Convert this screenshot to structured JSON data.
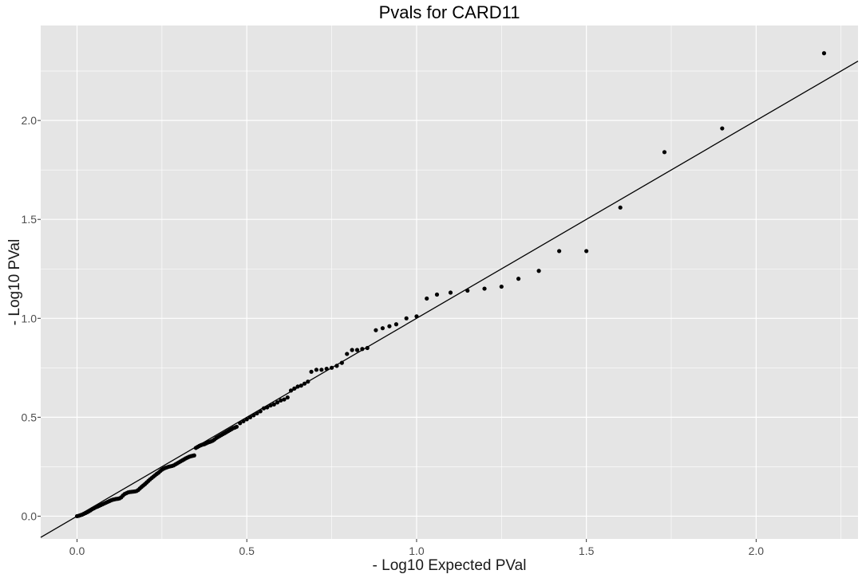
{
  "chart_data": {
    "type": "scatter",
    "title": "Pvals for CARD11",
    "xlabel": "- Log10 Expected PVal",
    "ylabel": "- Log10 PVal",
    "xlim": [
      -0.107,
      2.3
    ],
    "ylim": [
      -0.115,
      2.48
    ],
    "x_ticks": [
      0.0,
      0.5,
      1.0,
      1.5,
      2.0
    ],
    "x_tick_labels": [
      "0.0",
      "0.5",
      "1.0",
      "1.5",
      "2.0"
    ],
    "y_ticks": [
      0.0,
      0.5,
      1.0,
      1.5,
      2.0
    ],
    "y_tick_labels": [
      "0.0",
      "0.5",
      "1.0",
      "1.5",
      "2.0"
    ],
    "grid": true,
    "reference_line": {
      "type": "identity",
      "slope": 1,
      "intercept": 0
    },
    "colors": {
      "panel": "#e5e5e5",
      "grid": "#ffffff",
      "points": "#000000",
      "line": "#000000"
    },
    "points": [
      [
        0.0,
        0.0
      ],
      [
        0.005,
        0.002
      ],
      [
        0.01,
        0.005
      ],
      [
        0.015,
        0.008
      ],
      [
        0.02,
        0.012
      ],
      [
        0.025,
        0.016
      ],
      [
        0.03,
        0.02
      ],
      [
        0.035,
        0.025
      ],
      [
        0.04,
        0.03
      ],
      [
        0.045,
        0.036
      ],
      [
        0.05,
        0.04
      ],
      [
        0.055,
        0.045
      ],
      [
        0.06,
        0.048
      ],
      [
        0.065,
        0.052
      ],
      [
        0.07,
        0.056
      ],
      [
        0.075,
        0.06
      ],
      [
        0.08,
        0.064
      ],
      [
        0.085,
        0.068
      ],
      [
        0.09,
        0.072
      ],
      [
        0.095,
        0.076
      ],
      [
        0.1,
        0.08
      ],
      [
        0.105,
        0.083
      ],
      [
        0.11,
        0.085
      ],
      [
        0.115,
        0.087
      ],
      [
        0.12,
        0.088
      ],
      [
        0.125,
        0.09
      ],
      [
        0.13,
        0.095
      ],
      [
        0.135,
        0.104
      ],
      [
        0.14,
        0.112
      ],
      [
        0.145,
        0.116
      ],
      [
        0.15,
        0.12
      ],
      [
        0.155,
        0.122
      ],
      [
        0.16,
        0.123
      ],
      [
        0.165,
        0.124
      ],
      [
        0.17,
        0.125
      ],
      [
        0.175,
        0.127
      ],
      [
        0.18,
        0.132
      ],
      [
        0.185,
        0.14
      ],
      [
        0.19,
        0.148
      ],
      [
        0.195,
        0.155
      ],
      [
        0.2,
        0.162
      ],
      [
        0.205,
        0.17
      ],
      [
        0.21,
        0.178
      ],
      [
        0.215,
        0.186
      ],
      [
        0.22,
        0.193
      ],
      [
        0.225,
        0.2
      ],
      [
        0.23,
        0.207
      ],
      [
        0.235,
        0.214
      ],
      [
        0.24,
        0.22
      ],
      [
        0.245,
        0.228
      ],
      [
        0.25,
        0.235
      ],
      [
        0.255,
        0.24
      ],
      [
        0.26,
        0.244
      ],
      [
        0.265,
        0.247
      ],
      [
        0.27,
        0.25
      ],
      [
        0.275,
        0.252
      ],
      [
        0.28,
        0.254
      ],
      [
        0.285,
        0.257
      ],
      [
        0.29,
        0.262
      ],
      [
        0.295,
        0.267
      ],
      [
        0.3,
        0.272
      ],
      [
        0.305,
        0.277
      ],
      [
        0.31,
        0.282
      ],
      [
        0.315,
        0.287
      ],
      [
        0.32,
        0.292
      ],
      [
        0.325,
        0.296
      ],
      [
        0.33,
        0.3
      ],
      [
        0.335,
        0.303
      ],
      [
        0.34,
        0.305
      ],
      [
        0.345,
        0.307
      ],
      [
        0.35,
        0.345
      ],
      [
        0.355,
        0.35
      ],
      [
        0.36,
        0.355
      ],
      [
        0.365,
        0.359
      ],
      [
        0.37,
        0.362
      ],
      [
        0.375,
        0.364
      ],
      [
        0.38,
        0.368
      ],
      [
        0.385,
        0.372
      ],
      [
        0.39,
        0.375
      ],
      [
        0.395,
        0.378
      ],
      [
        0.4,
        0.382
      ],
      [
        0.405,
        0.388
      ],
      [
        0.41,
        0.395
      ],
      [
        0.415,
        0.4
      ],
      [
        0.42,
        0.405
      ],
      [
        0.425,
        0.41
      ],
      [
        0.43,
        0.415
      ],
      [
        0.435,
        0.42
      ],
      [
        0.44,
        0.425
      ],
      [
        0.445,
        0.43
      ],
      [
        0.45,
        0.435
      ],
      [
        0.455,
        0.44
      ],
      [
        0.46,
        0.445
      ],
      [
        0.465,
        0.448
      ],
      [
        0.47,
        0.452
      ],
      [
        0.48,
        0.47
      ],
      [
        0.49,
        0.48
      ],
      [
        0.5,
        0.49
      ],
      [
        0.51,
        0.5
      ],
      [
        0.52,
        0.51
      ],
      [
        0.53,
        0.52
      ],
      [
        0.54,
        0.53
      ],
      [
        0.55,
        0.545
      ],
      [
        0.56,
        0.55
      ],
      [
        0.57,
        0.56
      ],
      [
        0.58,
        0.565
      ],
      [
        0.59,
        0.575
      ],
      [
        0.6,
        0.585
      ],
      [
        0.61,
        0.59
      ],
      [
        0.62,
        0.6
      ],
      [
        0.63,
        0.635
      ],
      [
        0.64,
        0.645
      ],
      [
        0.65,
        0.655
      ],
      [
        0.66,
        0.66
      ],
      [
        0.67,
        0.67
      ],
      [
        0.68,
        0.68
      ],
      [
        0.69,
        0.73
      ],
      [
        0.705,
        0.74
      ],
      [
        0.72,
        0.74
      ],
      [
        0.735,
        0.745
      ],
      [
        0.75,
        0.75
      ],
      [
        0.765,
        0.76
      ],
      [
        0.78,
        0.775
      ],
      [
        0.795,
        0.82
      ],
      [
        0.81,
        0.84
      ],
      [
        0.825,
        0.84
      ],
      [
        0.84,
        0.845
      ],
      [
        0.855,
        0.85
      ],
      [
        0.88,
        0.94
      ],
      [
        0.9,
        0.95
      ],
      [
        0.92,
        0.96
      ],
      [
        0.94,
        0.97
      ],
      [
        0.97,
        1.0
      ],
      [
        1.0,
        1.01
      ],
      [
        1.03,
        1.1
      ],
      [
        1.06,
        1.12
      ],
      [
        1.1,
        1.13
      ],
      [
        1.15,
        1.14
      ],
      [
        1.2,
        1.15
      ],
      [
        1.25,
        1.16
      ],
      [
        1.3,
        1.2
      ],
      [
        1.36,
        1.24
      ],
      [
        1.42,
        1.34
      ],
      [
        1.5,
        1.34
      ],
      [
        1.6,
        1.56
      ],
      [
        1.73,
        1.84
      ],
      [
        1.9,
        1.96
      ],
      [
        2.2,
        2.34
      ]
    ]
  }
}
